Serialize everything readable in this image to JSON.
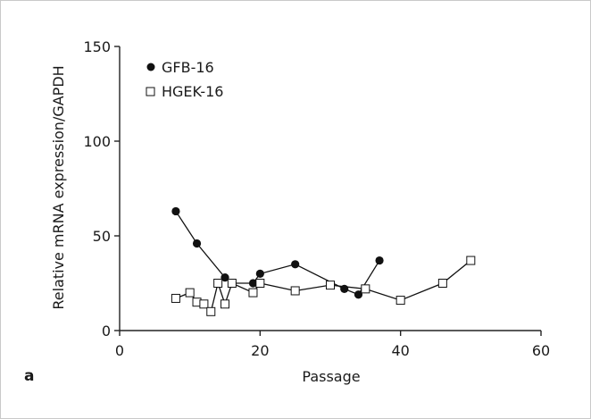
{
  "panel_label": "a",
  "colors": {
    "axis": "#222222",
    "series_line": "#111111",
    "marker_fill_gfb": "#111111",
    "marker_fill_hgek": "#ffffff"
  },
  "chart_data": {
    "type": "line",
    "xlabel": "Passage",
    "ylabel": "Relative mRNA expression/GAPDH",
    "xlim": [
      0,
      60
    ],
    "ylim": [
      0,
      150
    ],
    "xticks": [
      0,
      20,
      40,
      60
    ],
    "yticks": [
      0,
      50,
      100,
      150
    ],
    "xtick_labels": [
      "0",
      "20",
      "40",
      "60"
    ],
    "ytick_labels": [
      "0",
      "50",
      "100",
      "150"
    ],
    "legend_position": "top-left",
    "series": [
      {
        "name": "GFB-16",
        "marker": "filled-circle",
        "x": [
          8,
          11,
          15,
          16,
          19,
          20,
          25,
          32,
          34,
          37
        ],
        "y": [
          63,
          46,
          28,
          25,
          25,
          30,
          35,
          22,
          19,
          37
        ]
      },
      {
        "name": "HGEK-16",
        "marker": "open-square",
        "x": [
          8,
          10,
          11,
          12,
          13,
          14,
          15,
          16,
          19,
          20,
          25,
          30,
          35,
          40,
          46,
          50
        ],
        "y": [
          17,
          20,
          15,
          14,
          10,
          25,
          14,
          25,
          20,
          25,
          21,
          24,
          22,
          16,
          25,
          37
        ]
      }
    ]
  }
}
